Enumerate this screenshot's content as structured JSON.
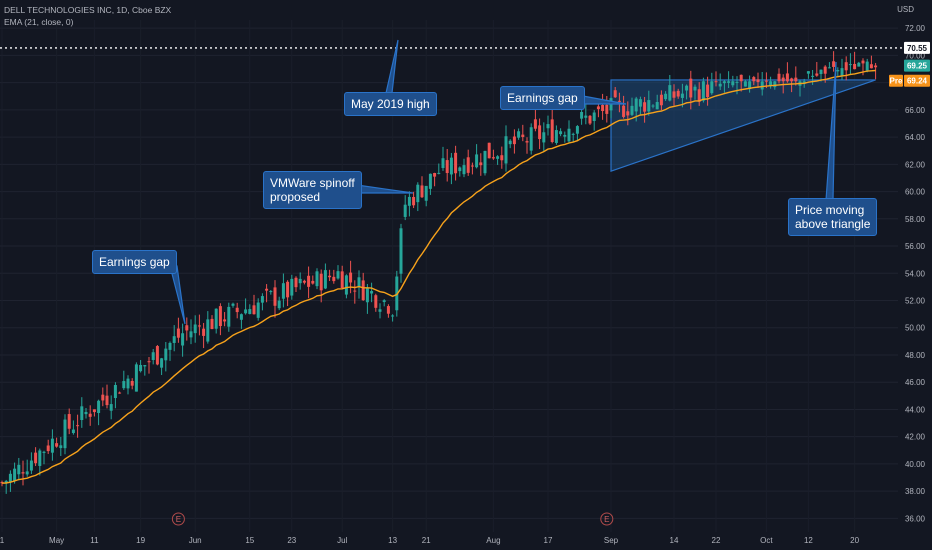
{
  "header": {
    "symbol_line": "DELL TECHNOLOGIES INC, 1D, Cboe BZX",
    "indicator_line": "EMA (21, close, 0)",
    "currency": "USD"
  },
  "price_labels": {
    "high_line": "70.55",
    "last_price": "69.25",
    "pre_tag": "Pre",
    "pre_price": "69.24"
  },
  "colors": {
    "background": "#131722",
    "up": "#26a69a",
    "down": "#ef5350",
    "ema": "#f7a21b",
    "triangle_fill": "#1e4a7a",
    "triangle_stroke": "#2a73c9",
    "callout_fill": "#1f4f8c",
    "last_price_tag": "#26a69a",
    "pre_tag": "#f7931a"
  },
  "annotations": {
    "earnings_gap_1": "Earnings gap",
    "vmware": "VMWare spinoff\nproposed",
    "may_high": "May 2019 high",
    "earnings_gap_2": "Earnings gap",
    "triangle_break": "Price moving\nabove triangle"
  },
  "earnings_marker": "E",
  "chart_data": {
    "type": "candlestick",
    "y_ticks": [
      36,
      38,
      40,
      42,
      44,
      46,
      48,
      50,
      52,
      54,
      56,
      58,
      60,
      62,
      64,
      66,
      68,
      70,
      72
    ],
    "ylim": [
      35,
      72.6
    ],
    "x_tick_labels": [
      "1",
      "May",
      "11",
      "19",
      "Jun",
      "15",
      "23",
      "Jul",
      "13",
      "21",
      "Aug",
      "17",
      "Sep",
      "14",
      "22",
      "Oct",
      "12",
      "20"
    ],
    "x_tick_index": [
      0,
      13,
      22,
      33,
      46,
      59,
      69,
      81,
      93,
      101,
      117,
      130,
      145,
      160,
      170,
      182,
      192,
      203
    ],
    "ema_period": 21,
    "may_2019_high": 70.55,
    "pre_market_price": 69.24,
    "last_price": 69.25,
    "key_closes": [
      {
        "index": 0,
        "close": 38.6
      },
      {
        "index": 43,
        "close": 49.6
      },
      {
        "index": 71,
        "close": 53.0
      },
      {
        "index": 80,
        "close": 54.0
      },
      {
        "index": 93,
        "close": 51.6
      },
      {
        "index": 96,
        "close": 59.1
      },
      {
        "index": 104,
        "close": 61.5
      },
      {
        "index": 145,
        "close": 66.0
      },
      {
        "index": 192,
        "close": 69.25
      }
    ],
    "earnings_event_index": [
      42,
      144
    ],
    "triangle": {
      "start_index": 145,
      "end_index": 208,
      "upper": 68.2,
      "lower_start": 61.5,
      "lower_end": 68.2
    }
  }
}
